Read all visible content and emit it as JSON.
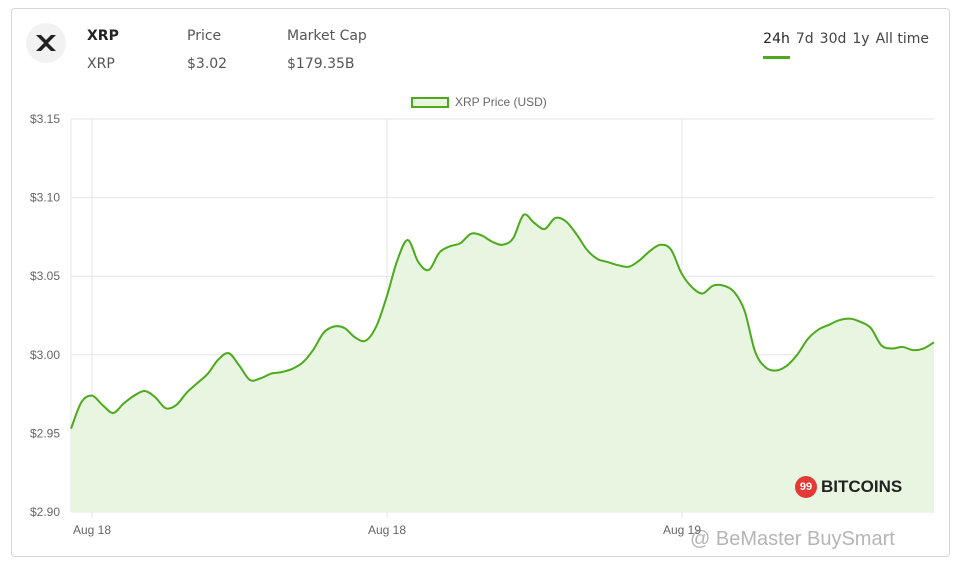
{
  "coin": {
    "name": "XRP",
    "symbol": "XRP",
    "logo_icon": "xrp-logo-icon"
  },
  "header": {
    "price_label": "Price",
    "price_value": "$3.02",
    "market_cap_label": "Market Cap",
    "market_cap_value": "$179.35B"
  },
  "time_ranges": [
    "24h",
    "7d",
    "30d",
    "1y",
    "All time"
  ],
  "active_range": "24h",
  "colors": {
    "accent": "#4caa1c",
    "fill": "#e8f5e1",
    "brand_badge": "#e53935"
  },
  "chart_data": {
    "type": "area",
    "legend": "XRP Price (USD)",
    "ylim": [
      2.9,
      3.15
    ],
    "yticks": [
      "$3.15",
      "$3.10",
      "$3.05",
      "$3.00",
      "$2.95",
      "$2.90"
    ],
    "xticks": [
      "Aug 18",
      "Aug 18",
      "Aug 19"
    ],
    "grid": true,
    "legend_placement": "top-center",
    "series": [
      {
        "name": "XRP Price (USD)",
        "values": [
          2.953,
          2.97,
          2.974,
          2.968,
          2.963,
          2.969,
          2.974,
          2.977,
          2.973,
          2.966,
          2.968,
          2.976,
          2.982,
          2.988,
          2.997,
          3.001,
          2.993,
          2.984,
          2.985,
          2.988,
          2.989,
          2.991,
          2.995,
          3.003,
          3.014,
          3.018,
          3.017,
          3.011,
          3.009,
          3.018,
          3.037,
          3.06,
          3.073,
          3.059,
          3.054,
          3.065,
          3.069,
          3.071,
          3.077,
          3.076,
          3.072,
          3.07,
          3.074,
          3.089,
          3.084,
          3.08,
          3.087,
          3.085,
          3.077,
          3.067,
          3.061,
          3.059,
          3.057,
          3.056,
          3.06,
          3.066,
          3.07,
          3.067,
          3.052,
          3.043,
          3.039,
          3.044,
          3.044,
          3.04,
          3.028,
          3.002,
          2.992,
          2.99,
          2.993,
          3.0,
          3.01,
          3.016,
          3.019,
          3.022,
          3.023,
          3.021,
          3.017,
          3.006,
          3.004,
          3.005,
          3.003,
          3.004,
          3.008
        ]
      }
    ]
  },
  "brand": {
    "badge_text": "99",
    "name": "BITCOINS"
  },
  "watermark": "@ BeMaster BuySmart"
}
